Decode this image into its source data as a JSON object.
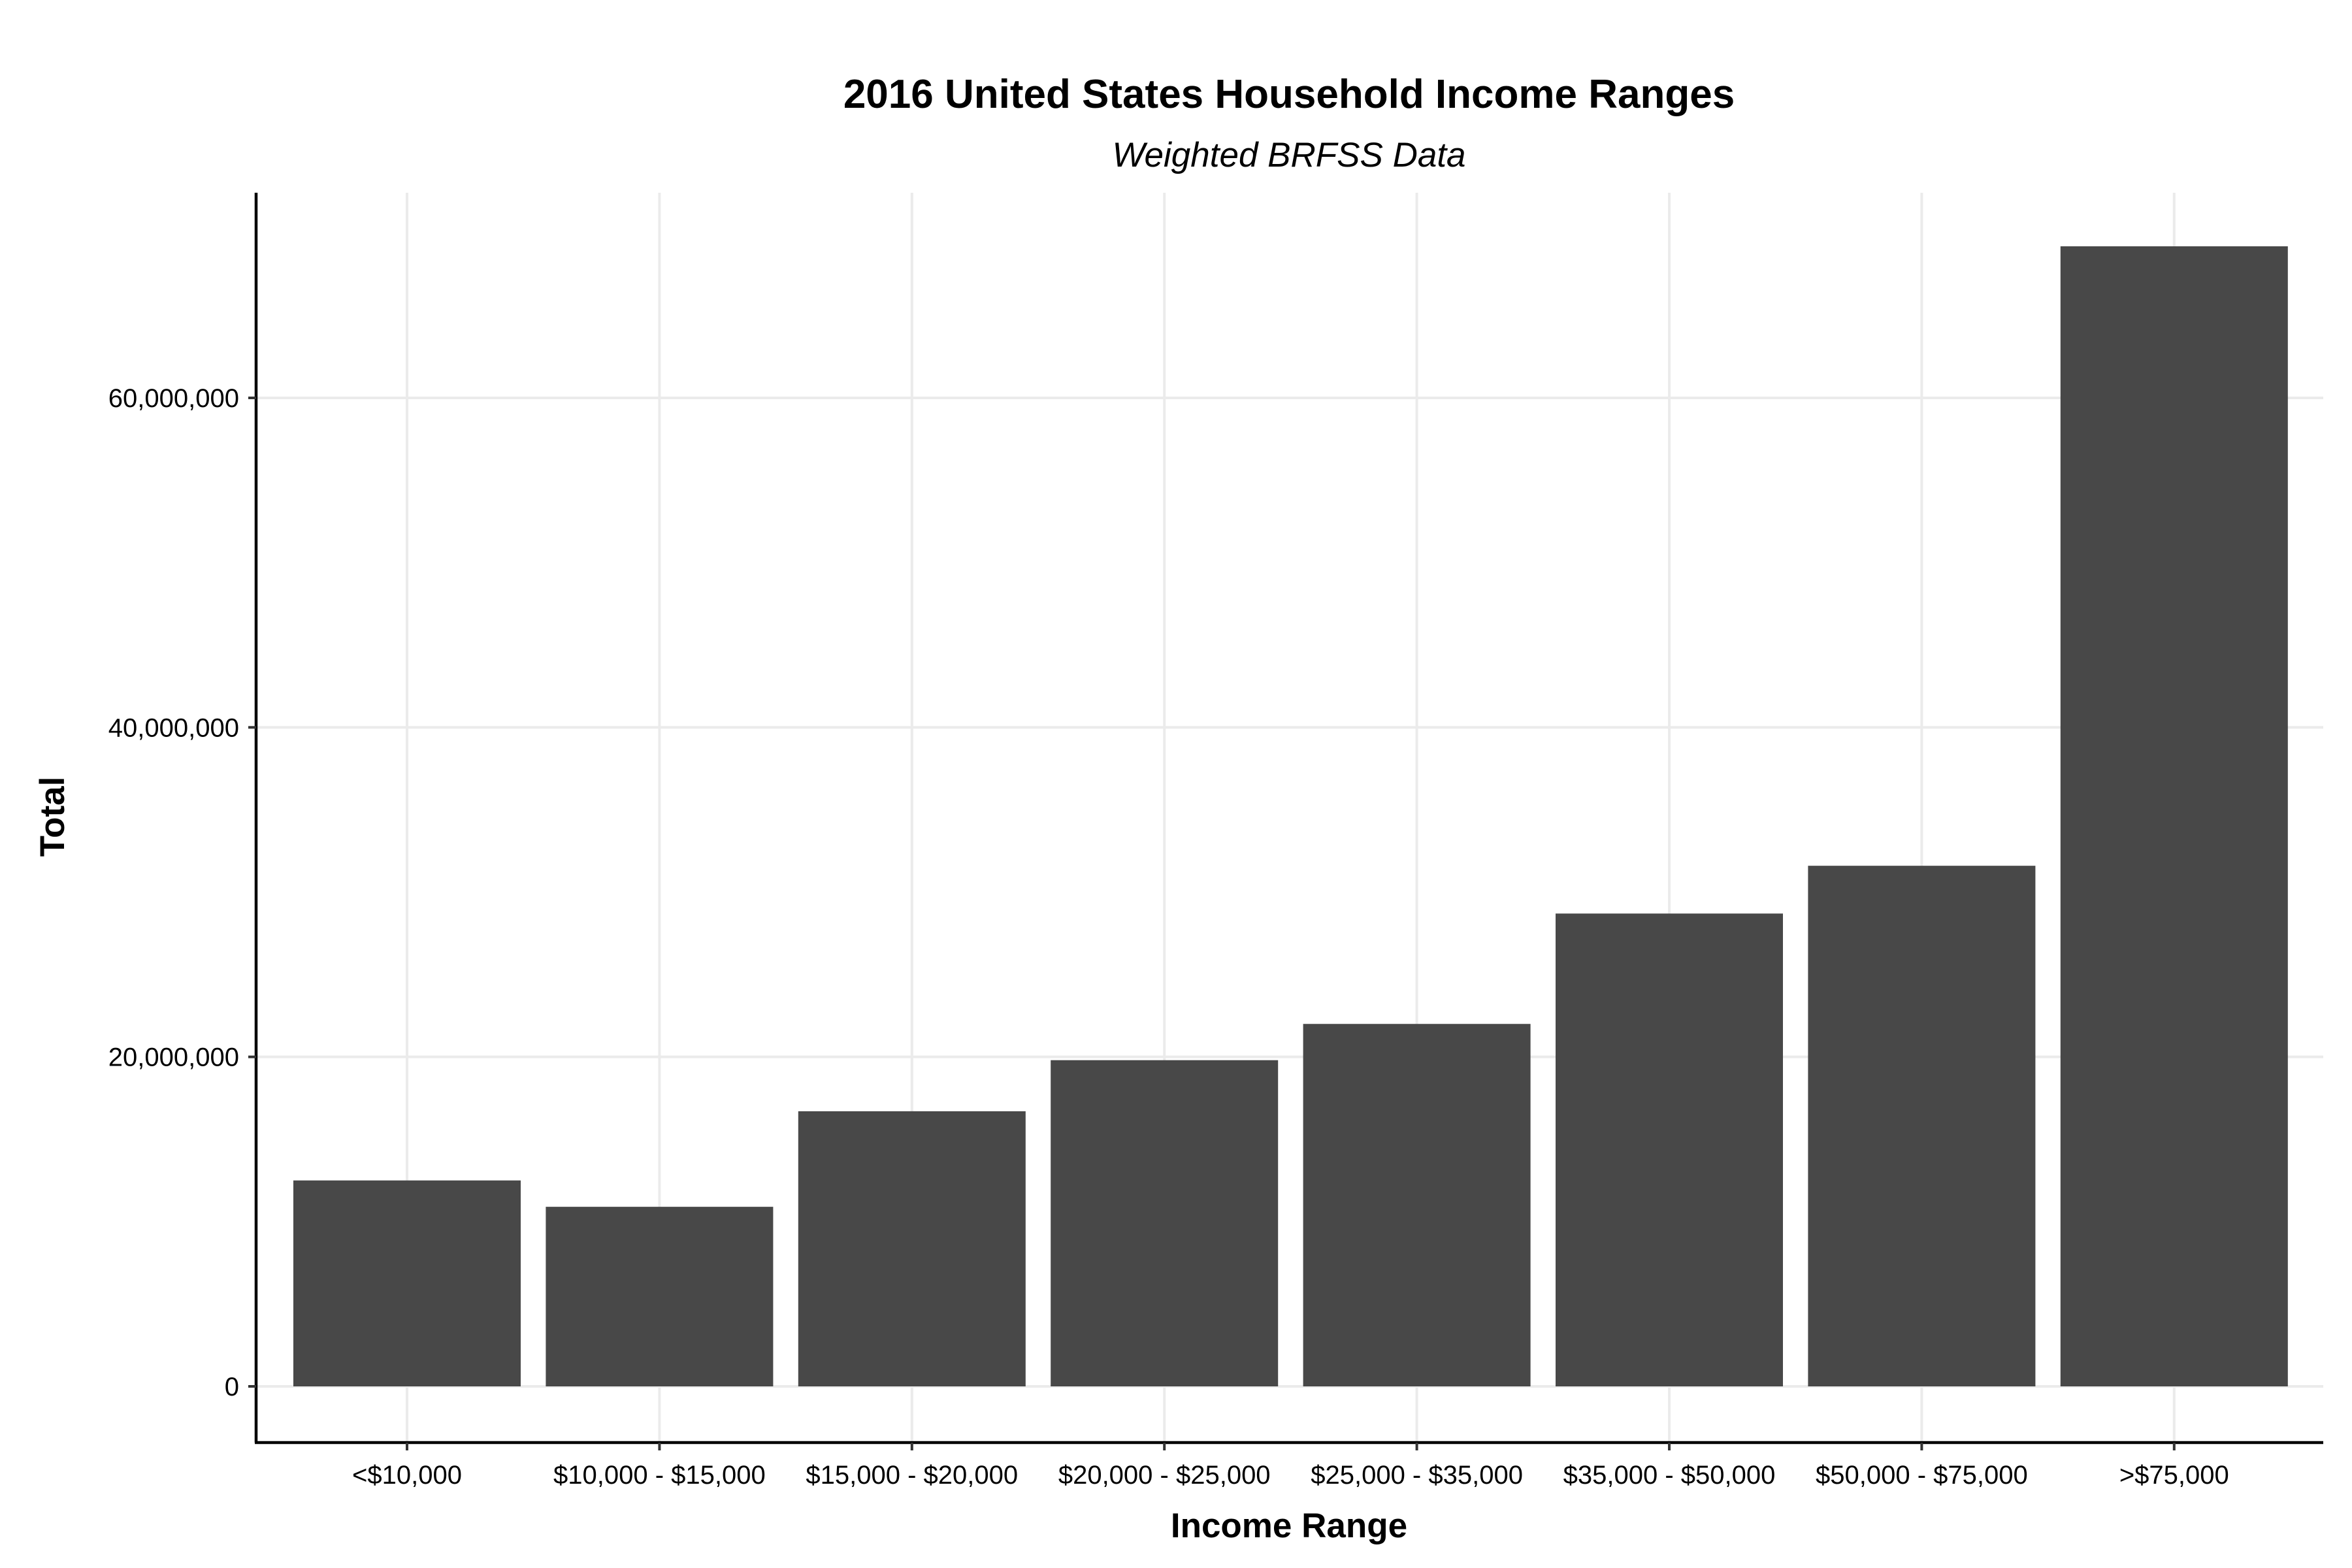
{
  "chart_data": {
    "type": "bar",
    "title": "2016 United States Household Income Ranges",
    "subtitle": "Weighted BRFSS Data",
    "xlabel": "Income Range",
    "ylabel": "Total",
    "categories": [
      "<$10,000",
      "$10,000 - $15,000",
      "$15,000 - $20,000",
      "$20,000 - $25,000",
      "$25,000 - $35,000",
      "$35,000 - $50,000",
      "$50,000 - $75,000",
      ">$75,000"
    ],
    "values": [
      12500000,
      10900000,
      16700000,
      19800000,
      22000000,
      28700000,
      31600000,
      69200000
    ],
    "ylim": [
      0,
      72000000
    ],
    "yticks": [
      0,
      20000000,
      40000000,
      60000000
    ],
    "ytick_labels": [
      "0",
      "20,000,000",
      "40,000,000",
      "60,000,000"
    ],
    "grid": true,
    "bar_color": "#484848",
    "grid_color": "#ebebeb"
  }
}
